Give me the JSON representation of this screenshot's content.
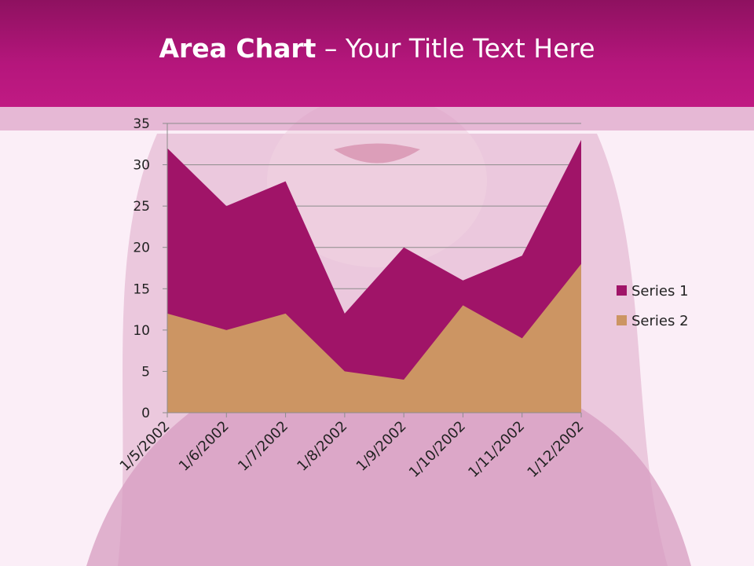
{
  "slide": {
    "title_bold": "Area Chart",
    "title_rest": " – Your Title Text Here"
  },
  "colors": {
    "header": "#b5167c",
    "series1": "#a01468",
    "series2": "#cc9563",
    "grid": "#8c8c8c"
  },
  "chart_data": {
    "type": "area",
    "categories": [
      "1/5/2002",
      "1/6/2002",
      "1/7/2002",
      "1/8/2002",
      "1/9/2002",
      "1/10/2002",
      "1/11/2002",
      "1/12/2002"
    ],
    "series": [
      {
        "name": "Series 1",
        "values": [
          32,
          25,
          28,
          12,
          20,
          16,
          19,
          33
        ]
      },
      {
        "name": "Series 2",
        "values": [
          12,
          10,
          12,
          5,
          4,
          13,
          9,
          18
        ]
      }
    ],
    "yticks": [
      "0",
      "5",
      "10",
      "15",
      "20",
      "25",
      "30",
      "35"
    ],
    "ylim": [
      0,
      35
    ],
    "grid": true,
    "legend_position": "right"
  }
}
